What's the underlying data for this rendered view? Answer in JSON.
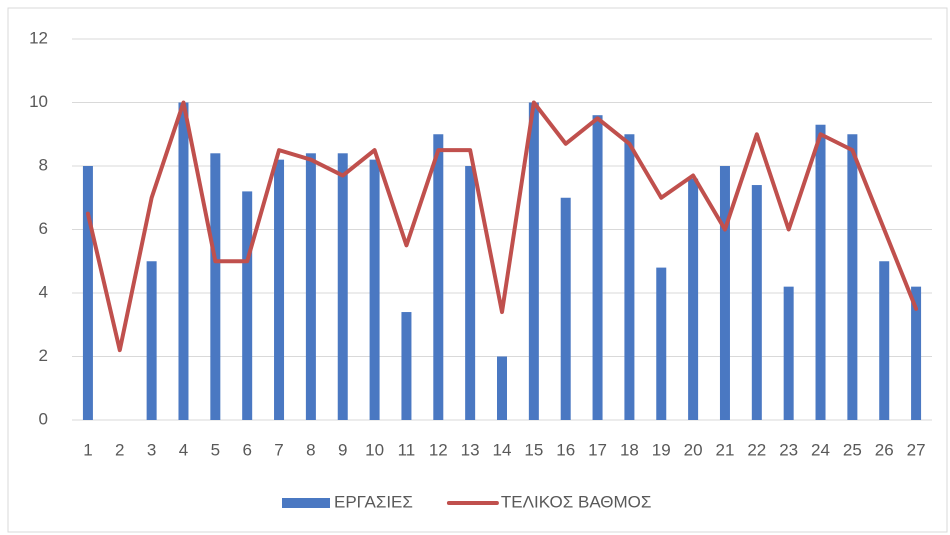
{
  "chart_data": {
    "type": "bar_line",
    "categories": [
      "1",
      "2",
      "3",
      "4",
      "5",
      "6",
      "7",
      "8",
      "9",
      "10",
      "11",
      "12",
      "13",
      "14",
      "15",
      "16",
      "17",
      "18",
      "19",
      "20",
      "21",
      "22",
      "23",
      "24",
      "25",
      "26",
      "27"
    ],
    "series": [
      {
        "name": "ΕΡΓΑΣΙΕΣ",
        "type": "bar",
        "color": "#4a78c2",
        "values": [
          8,
          0,
          5,
          10,
          8.4,
          7.2,
          8.2,
          8.4,
          8.4,
          8.2,
          3.4,
          9,
          8,
          2,
          10,
          7,
          9.6,
          9,
          4.8,
          7.6,
          8,
          7.4,
          4.2,
          9.3,
          9,
          5,
          4.2
        ]
      },
      {
        "name": "ΤΕΛΙΚΟΣ ΒΑΘΜΟΣ",
        "type": "line",
        "color": "#c0504d",
        "values": [
          6.5,
          2.2,
          7,
          10,
          5,
          5,
          8.5,
          8.2,
          7.7,
          8.5,
          5.5,
          8.5,
          8.5,
          3.4,
          10,
          8.7,
          9.5,
          8.7,
          7,
          7.7,
          6,
          9,
          6,
          9,
          8.5,
          6,
          3.5
        ]
      }
    ],
    "ylim": [
      0,
      12
    ],
    "yticks": [
      0,
      2,
      4,
      6,
      8,
      10,
      12
    ],
    "grid": true,
    "legend": "bottom"
  }
}
